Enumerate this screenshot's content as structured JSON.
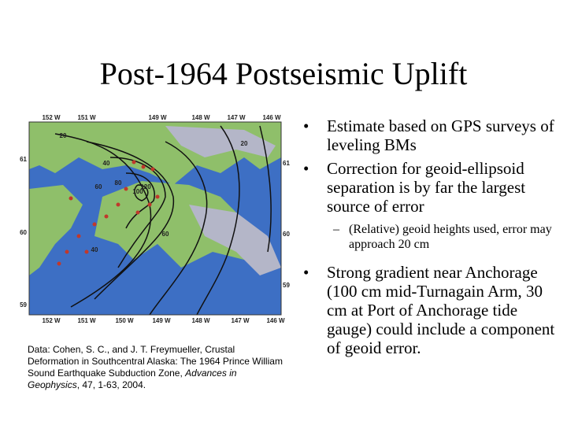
{
  "title": "Post-1964 Postseismic Uplift",
  "map": {
    "top_labels": [
      "152 W",
      "151 W",
      "149 W",
      "148 W",
      "147 W",
      "146 W"
    ],
    "bottom_labels": [
      "152 W",
      "151 W",
      "150 W",
      "149 W",
      "148 W",
      "147 W",
      "146 W"
    ],
    "left_labels": [
      "61",
      "60",
      "59"
    ],
    "right_labels": [
      "61 N",
      "60 N",
      "59 N"
    ],
    "contour_labels": [
      "20",
      "40",
      "60",
      "80",
      "100",
      "120",
      "40",
      "60",
      "20"
    ]
  },
  "citation": {
    "prefix": "Data: Cohen, S. C., and J. T. Freymueller, Crustal Deformation in Southcentral Alaska: The 1964 Prince William Sound Earthquake Subduction Zone, ",
    "journal": "Advances in Geophysics",
    "suffix": ", 47, 1-63, 2004."
  },
  "bullets": [
    {
      "text": "Estimate based on GPS surveys of leveling BMs"
    },
    {
      "text": "Correction for geoid-ellipsoid separation is by far the largest source of error",
      "sub": [
        "(Relative) geoid heights used, error may approach 20 cm"
      ]
    },
    {
      "text": "Strong gradient near Anchorage (100 cm mid-Turnagain Arm, 30 cm at Port of Anchorage tide gauge) could include a component of geoid error."
    }
  ]
}
